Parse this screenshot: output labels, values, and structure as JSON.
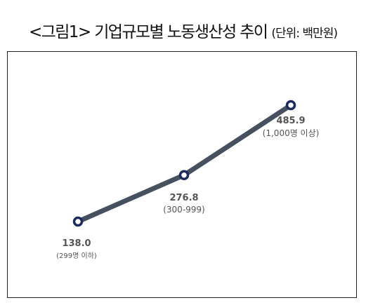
{
  "title": {
    "main": "<그림1> 기업규모별 노동생산성 추이",
    "unit": "(단위: 백만원)"
  },
  "chart_data": {
    "type": "line",
    "categories": [
      "(299명 이하)",
      "(300-999)",
      "(1,000명 이상)"
    ],
    "series": [
      {
        "values": [
          138.0,
          276.8,
          485.9
        ],
        "labels": [
          "138.0",
          "276.8",
          "485.9"
        ]
      }
    ],
    "grid": false,
    "legend": "none",
    "colors": {
      "line": "#46505f",
      "marker_stroke": "#1c2a5e",
      "marker_fill": "#ffffff",
      "label": "#555555"
    }
  }
}
